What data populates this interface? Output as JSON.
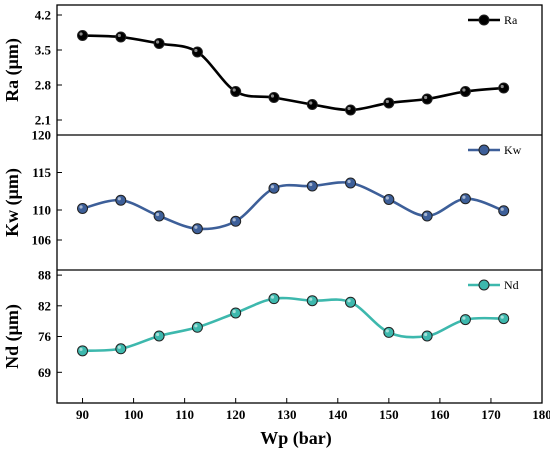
{
  "chart_data": {
    "type": "line",
    "x": [
      90,
      97.5,
      105,
      112.5,
      120,
      127.5,
      135,
      142.5,
      150,
      157.5,
      165,
      172.5
    ],
    "xlabel": "Wp (bar)",
    "xlim": [
      85,
      180
    ],
    "xticks": [
      90,
      100,
      110,
      120,
      130,
      140,
      150,
      160,
      170,
      180
    ],
    "panels": [
      {
        "name": "Ra",
        "ylabel": "Ra (μm)",
        "ylim": [
          1.8,
          4.4
        ],
        "yticks": [
          "4.2",
          "3.5",
          "2.8",
          "2.1"
        ],
        "color": "#000000",
        "values": [
          3.79,
          3.76,
          3.63,
          3.46,
          2.67,
          2.55,
          2.41,
          2.3,
          2.44,
          2.52,
          2.67,
          2.74
        ]
      },
      {
        "name": "Kw",
        "ylabel": "Kw (μm)",
        "ylim": [
          102,
          120
        ],
        "yticks": [
          "120",
          "115",
          "110",
          "106"
        ],
        "color": "#3d5f99",
        "values": [
          110.2,
          111.3,
          109.2,
          107.5,
          108.5,
          112.9,
          113.2,
          113.6,
          111.4,
          109.2,
          111.5,
          109.9
        ]
      },
      {
        "name": "Nd",
        "ylabel": "Nd (μm)",
        "ylim": [
          63,
          89
        ],
        "yticks": [
          "88",
          "82",
          "76",
          "69"
        ],
        "color": "#3db8ad",
        "values": [
          73.2,
          73.6,
          76.1,
          77.8,
          80.6,
          83.4,
          83.0,
          82.7,
          76.8,
          76.1,
          79.3,
          79.5
        ]
      }
    ]
  }
}
